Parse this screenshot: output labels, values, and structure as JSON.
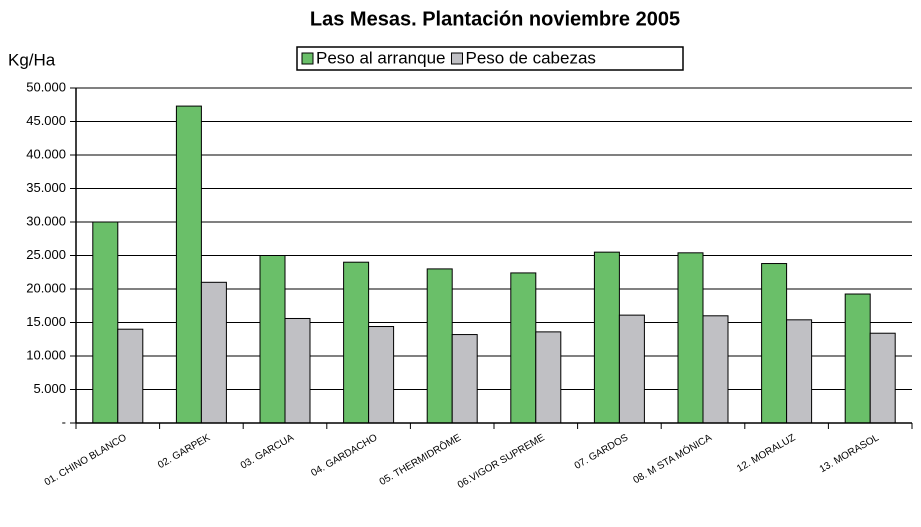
{
  "chart_data": {
    "type": "bar",
    "title": "Las Mesas. Plantación noviembre 2005",
    "y_label": "Kg/Ha",
    "categories": [
      "01. CHINO BLANCO",
      "02. GARPEK",
      "03. GARCUA",
      "04. GARDACHO",
      "05. THERMIDRÔME",
      "06.VIGOR SUPREME",
      "07. GARDOS",
      "08. M STA MÓNICA",
      "12. MORALUZ",
      "13. MORASOL"
    ],
    "series": [
      {
        "name": "Peso al arranque",
        "color": "#6abf69",
        "values": [
          30000,
          47300,
          25000,
          24000,
          23000,
          22400,
          25500,
          25400,
          23800,
          19250
        ]
      },
      {
        "name": "Peso de cabezas",
        "color": "#c0c0c4",
        "values": [
          14000,
          21000,
          15600,
          14400,
          13200,
          13600,
          16100,
          16000,
          15400,
          13400
        ]
      }
    ],
    "ylim": [
      0,
      50000
    ],
    "yticks": [
      {
        "value": 0,
        "label": "-"
      },
      {
        "value": 5000,
        "label": "5.000"
      },
      {
        "value": 10000,
        "label": "10.000"
      },
      {
        "value": 15000,
        "label": "15.000"
      },
      {
        "value": 20000,
        "label": "20.000"
      },
      {
        "value": 25000,
        "label": "25.000"
      },
      {
        "value": 30000,
        "label": "30.000"
      },
      {
        "value": 35000,
        "label": "35.000"
      },
      {
        "value": 40000,
        "label": "40.000"
      },
      {
        "value": 45000,
        "label": "45.000"
      },
      {
        "value": 50000,
        "label": "50.000"
      }
    ],
    "grid": true,
    "legend": "top"
  }
}
